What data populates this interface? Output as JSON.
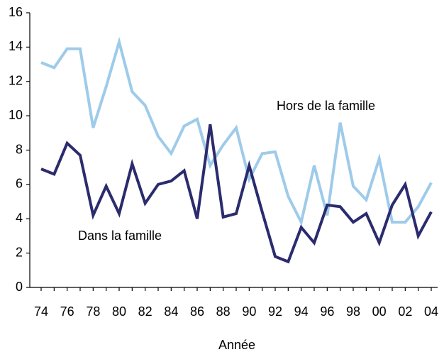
{
  "chart_data": {
    "type": "line",
    "x_label": "Année",
    "categories": [
      "74",
      null,
      "76",
      null,
      "78",
      null,
      "80",
      null,
      "82",
      null,
      "84",
      null,
      "86",
      null,
      "88",
      null,
      "90",
      null,
      "92",
      null,
      "94",
      null,
      "96",
      null,
      "98",
      null,
      "00",
      null,
      "02",
      null,
      "04"
    ],
    "series": [
      {
        "name": "Hors de la famille",
        "color": "#9ecbea",
        "values": [
          13.1,
          12.8,
          13.9,
          13.9,
          9.3,
          11.7,
          14.3,
          11.4,
          10.6,
          8.8,
          7.8,
          9.4,
          9.8,
          7.1,
          8.3,
          9.3,
          6.3,
          7.8,
          7.9,
          5.3,
          3.8,
          7.1,
          4.2,
          9.6,
          5.9,
          5.1,
          7.5,
          3.8,
          3.8,
          4.7,
          6.1
        ]
      },
      {
        "name": "Dans la famille",
        "color": "#2b2b6e",
        "values": [
          6.9,
          6.6,
          8.4,
          7.7,
          4.2,
          5.9,
          4.3,
          7.2,
          4.9,
          6.0,
          6.2,
          6.8,
          4.0,
          9.5,
          4.1,
          4.3,
          7.1,
          4.4,
          1.8,
          1.5,
          3.5,
          2.6,
          4.8,
          4.7,
          3.8,
          4.3,
          2.6,
          4.8,
          6.0,
          3.0,
          4.4
        ]
      }
    ],
    "ylim": [
      0,
      16
    ],
    "yticks": [
      0,
      2,
      4,
      6,
      8,
      10,
      12,
      14,
      16
    ],
    "grid": false
  }
}
